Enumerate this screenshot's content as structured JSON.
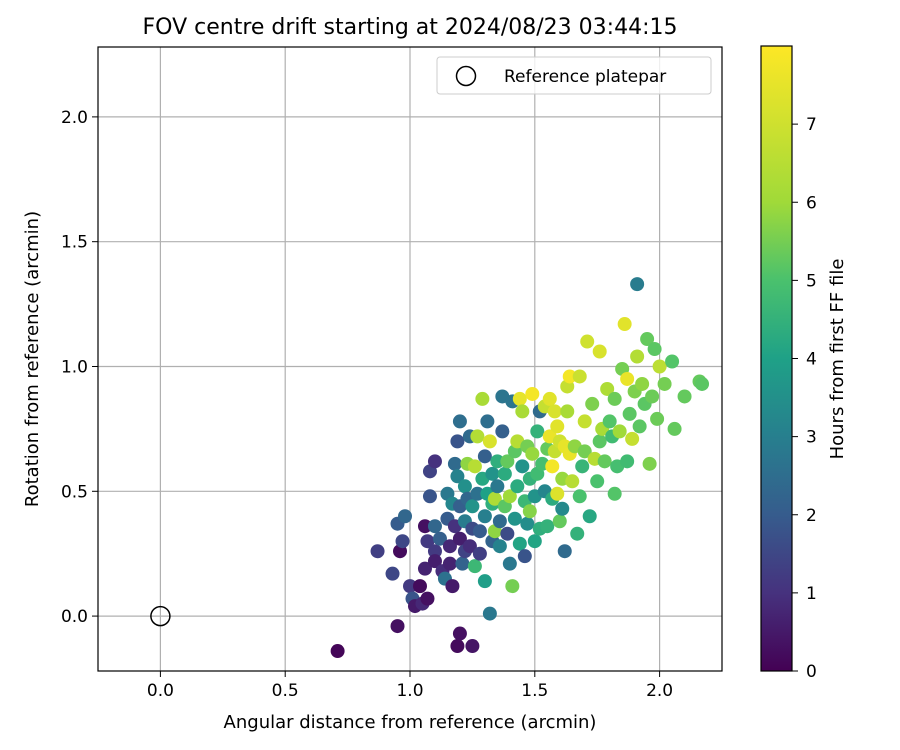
{
  "chart_data": {
    "type": "scatter",
    "title": "FOV centre drift starting at 2024/08/23 03:44:15",
    "xlabel": "Angular distance from reference (arcmin)",
    "ylabel": "Rotation from reference (arcmin)",
    "xlim": [
      -0.25,
      2.25
    ],
    "ylim": [
      -0.22,
      2.28
    ],
    "xticks": [
      0.0,
      0.5,
      1.0,
      1.5,
      2.0
    ],
    "yticks": [
      0.0,
      0.5,
      1.0,
      1.5,
      2.0
    ],
    "xtick_labels": [
      "0.0",
      "0.5",
      "1.0",
      "1.5",
      "2.0"
    ],
    "ytick_labels": [
      "0.0",
      "0.5",
      "1.0",
      "1.5",
      "2.0"
    ],
    "grid": true,
    "colormap": "viridis",
    "colorbar": {
      "label": "Hours from first FF file",
      "range": [
        0,
        8
      ],
      "ticks": [
        0,
        1,
        2,
        3,
        4,
        5,
        6,
        7
      ],
      "tick_labels": [
        "0",
        "1",
        "2",
        "3",
        "4",
        "5",
        "6",
        "7"
      ]
    },
    "legend": {
      "position": "top-right",
      "entries": [
        "Reference platepar"
      ]
    },
    "reference_point": {
      "x": 0.0,
      "y": 0.0
    },
    "points": [
      [
        0.71,
        -0.14,
        0.1
      ],
      [
        0.95,
        -0.04,
        0.3
      ],
      [
        1.19,
        -0.12,
        0.2
      ],
      [
        1.2,
        -0.07,
        0.3
      ],
      [
        1.25,
        -0.12,
        0.4
      ],
      [
        0.87,
        0.26,
        1.3
      ],
      [
        0.93,
        0.17,
        1.5
      ],
      [
        0.96,
        0.26,
        0.2
      ],
      [
        0.95,
        0.37,
        2.0
      ],
      [
        0.98,
        0.4,
        2.3
      ],
      [
        0.97,
        0.3,
        1.5
      ],
      [
        1.0,
        0.12,
        1.2
      ],
      [
        1.01,
        0.07,
        1.8
      ],
      [
        1.02,
        0.04,
        0.5
      ],
      [
        1.04,
        0.12,
        0.2
      ],
      [
        1.05,
        0.05,
        0.8
      ],
      [
        1.07,
        0.07,
        0.3
      ],
      [
        1.06,
        0.19,
        0.7
      ],
      [
        1.06,
        0.36,
        0.3
      ],
      [
        1.07,
        0.3,
        1.2
      ],
      [
        1.08,
        0.48,
        1.8
      ],
      [
        1.08,
        0.58,
        1.4
      ],
      [
        1.1,
        0.62,
        1.0
      ],
      [
        1.1,
        0.36,
        2.3
      ],
      [
        1.1,
        0.26,
        1.2
      ],
      [
        1.1,
        0.22,
        0.6
      ],
      [
        1.12,
        0.31,
        2.1
      ],
      [
        1.13,
        0.18,
        0.9
      ],
      [
        1.14,
        0.15,
        2.6
      ],
      [
        1.15,
        0.49,
        2.8
      ],
      [
        1.15,
        0.39,
        2.0
      ],
      [
        1.16,
        0.28,
        0.8
      ],
      [
        1.16,
        0.21,
        0.7
      ],
      [
        1.17,
        0.12,
        0.5
      ],
      [
        1.17,
        0.45,
        3.2
      ],
      [
        1.18,
        0.61,
        2.4
      ],
      [
        1.18,
        0.36,
        1.0
      ],
      [
        1.19,
        0.56,
        3.1
      ],
      [
        1.19,
        0.7,
        1.8
      ],
      [
        1.2,
        0.78,
        2.5
      ],
      [
        1.2,
        0.44,
        2.1
      ],
      [
        1.2,
        0.31,
        0.6
      ],
      [
        1.21,
        0.21,
        2.2
      ],
      [
        1.22,
        0.26,
        1.4
      ],
      [
        1.22,
        0.52,
        3.5
      ],
      [
        1.22,
        0.38,
        2.9
      ],
      [
        1.23,
        0.47,
        2.3
      ],
      [
        1.23,
        0.61,
        5.8
      ],
      [
        1.24,
        0.72,
        2.4
      ],
      [
        1.24,
        0.28,
        0.9
      ],
      [
        1.25,
        0.35,
        1.6
      ],
      [
        1.25,
        0.44,
        3.6
      ],
      [
        1.26,
        0.6,
        6.5
      ],
      [
        1.26,
        0.2,
        4.7
      ],
      [
        1.27,
        0.72,
        6.4
      ],
      [
        1.27,
        0.49,
        2.6
      ],
      [
        1.28,
        0.34,
        2.0
      ],
      [
        1.28,
        0.25,
        1.3
      ],
      [
        1.29,
        0.55,
        4.2
      ],
      [
        1.29,
        0.87,
        6.2
      ],
      [
        1.3,
        0.64,
        2.1
      ],
      [
        1.3,
        0.4,
        3.0
      ],
      [
        1.3,
        0.14,
        3.9
      ],
      [
        1.31,
        0.78,
        2.5
      ],
      [
        1.31,
        0.49,
        4.0
      ],
      [
        1.32,
        0.01,
        2.8
      ],
      [
        1.32,
        0.7,
        7.2
      ],
      [
        1.33,
        0.57,
        3.6
      ],
      [
        1.33,
        0.3,
        2.2
      ],
      [
        1.33,
        0.45,
        4.4
      ],
      [
        1.34,
        0.34,
        5.8
      ],
      [
        1.34,
        0.47,
        6.3
      ],
      [
        1.35,
        0.62,
        4.4
      ],
      [
        1.35,
        0.52,
        2.8
      ],
      [
        1.36,
        0.38,
        2.4
      ],
      [
        1.36,
        0.28,
        3.1
      ],
      [
        1.37,
        0.88,
        2.7
      ],
      [
        1.37,
        0.74,
        2.1
      ],
      [
        1.38,
        0.57,
        4.3
      ],
      [
        1.38,
        0.44,
        5.2
      ],
      [
        1.39,
        0.62,
        5.3
      ],
      [
        1.39,
        0.33,
        1.6
      ],
      [
        1.4,
        0.48,
        6.0
      ],
      [
        1.4,
        0.21,
        2.8
      ],
      [
        1.41,
        0.12,
        5.5
      ],
      [
        1.41,
        0.86,
        2.7
      ],
      [
        1.42,
        0.66,
        5.2
      ],
      [
        1.42,
        0.39,
        3.6
      ],
      [
        1.43,
        0.52,
        4.3
      ],
      [
        1.43,
        0.7,
        6.5
      ],
      [
        1.44,
        0.29,
        4.1
      ],
      [
        1.44,
        0.87,
        7.5
      ],
      [
        1.45,
        0.82,
        6.2
      ],
      [
        1.45,
        0.6,
        3.6
      ],
      [
        1.46,
        0.46,
        4.7
      ],
      [
        1.46,
        0.24,
        1.8
      ],
      [
        1.47,
        0.68,
        5.5
      ],
      [
        1.47,
        0.37,
        3.4
      ],
      [
        1.48,
        0.55,
        4.5
      ],
      [
        1.48,
        0.42,
        5.7
      ],
      [
        1.49,
        0.89,
        7.8
      ],
      [
        1.49,
        0.65,
        5.9
      ],
      [
        1.5,
        0.3,
        4.1
      ],
      [
        1.5,
        0.48,
        3.6
      ],
      [
        1.51,
        0.57,
        4.8
      ],
      [
        1.51,
        0.74,
        4.5
      ],
      [
        1.52,
        0.35,
        4.4
      ],
      [
        1.52,
        0.82,
        2.4
      ],
      [
        1.53,
        0.61,
        4.9
      ],
      [
        1.54,
        0.5,
        3.2
      ],
      [
        1.54,
        0.84,
        6.8
      ],
      [
        1.55,
        0.67,
        5.3
      ],
      [
        1.55,
        0.36,
        4.5
      ],
      [
        1.56,
        0.87,
        7.4
      ],
      [
        1.56,
        0.72,
        7.6
      ],
      [
        1.57,
        0.47,
        4.3
      ],
      [
        1.57,
        0.6,
        7.8
      ],
      [
        1.58,
        0.82,
        7.2
      ],
      [
        1.58,
        0.66,
        6.8
      ],
      [
        1.59,
        0.76,
        7.4
      ],
      [
        1.59,
        0.49,
        7.3
      ],
      [
        1.6,
        0.38,
        5.3
      ],
      [
        1.6,
        0.7,
        7.0
      ],
      [
        1.61,
        0.43,
        3.3
      ],
      [
        1.61,
        0.55,
        5.9
      ],
      [
        1.62,
        0.26,
        2.4
      ],
      [
        1.62,
        0.68,
        7.5
      ],
      [
        1.63,
        0.92,
        6.8
      ],
      [
        1.63,
        0.82,
        6.2
      ],
      [
        1.64,
        0.65,
        7.6
      ],
      [
        1.64,
        0.96,
        7.8
      ],
      [
        1.65,
        0.54,
        6.5
      ],
      [
        1.66,
        0.68,
        5.8
      ],
      [
        1.67,
        0.33,
        4.5
      ],
      [
        1.68,
        0.48,
        5.0
      ],
      [
        1.68,
        0.96,
        6.9
      ],
      [
        1.69,
        0.6,
        4.6
      ],
      [
        1.7,
        0.78,
        6.8
      ],
      [
        1.7,
        0.66,
        5.5
      ],
      [
        1.71,
        1.1,
        7.0
      ],
      [
        1.72,
        0.4,
        4.2
      ],
      [
        1.73,
        0.85,
        5.6
      ],
      [
        1.74,
        0.63,
        6.5
      ],
      [
        1.75,
        0.54,
        5.0
      ],
      [
        1.76,
        1.06,
        7.2
      ],
      [
        1.76,
        0.7,
        5.2
      ],
      [
        1.77,
        0.75,
        6.2
      ],
      [
        1.78,
        0.62,
        5.3
      ],
      [
        1.79,
        0.91,
        6.3
      ],
      [
        1.8,
        0.78,
        5.1
      ],
      [
        1.81,
        0.72,
        4.8
      ],
      [
        1.82,
        0.49,
        5.1
      ],
      [
        1.82,
        0.87,
        5.4
      ],
      [
        1.83,
        0.6,
        4.9
      ],
      [
        1.84,
        0.74,
        6.0
      ],
      [
        1.85,
        0.99,
        5.5
      ],
      [
        1.86,
        1.17,
        7.4
      ],
      [
        1.87,
        0.62,
        4.8
      ],
      [
        1.87,
        0.95,
        7.6
      ],
      [
        1.88,
        0.81,
        5.2
      ],
      [
        1.89,
        0.71,
        6.8
      ],
      [
        1.9,
        0.9,
        5.6
      ],
      [
        1.91,
        1.33,
        2.9
      ],
      [
        1.91,
        1.04,
        6.4
      ],
      [
        1.92,
        0.76,
        5.2
      ],
      [
        1.93,
        0.93,
        5.8
      ],
      [
        1.94,
        0.85,
        5.2
      ],
      [
        1.95,
        1.11,
        5.3
      ],
      [
        1.96,
        0.61,
        5.6
      ],
      [
        1.97,
        0.88,
        5.4
      ],
      [
        1.98,
        1.07,
        5.2
      ],
      [
        1.99,
        0.79,
        5.4
      ],
      [
        2.0,
        1.0,
        6.6
      ],
      [
        2.02,
        0.93,
        5.5
      ],
      [
        2.05,
        1.02,
        5.1
      ],
      [
        2.06,
        0.75,
        5.3
      ],
      [
        2.1,
        0.88,
        5.3
      ],
      [
        2.16,
        0.94,
        5.3
      ],
      [
        2.17,
        0.93,
        5.2
      ]
    ]
  }
}
